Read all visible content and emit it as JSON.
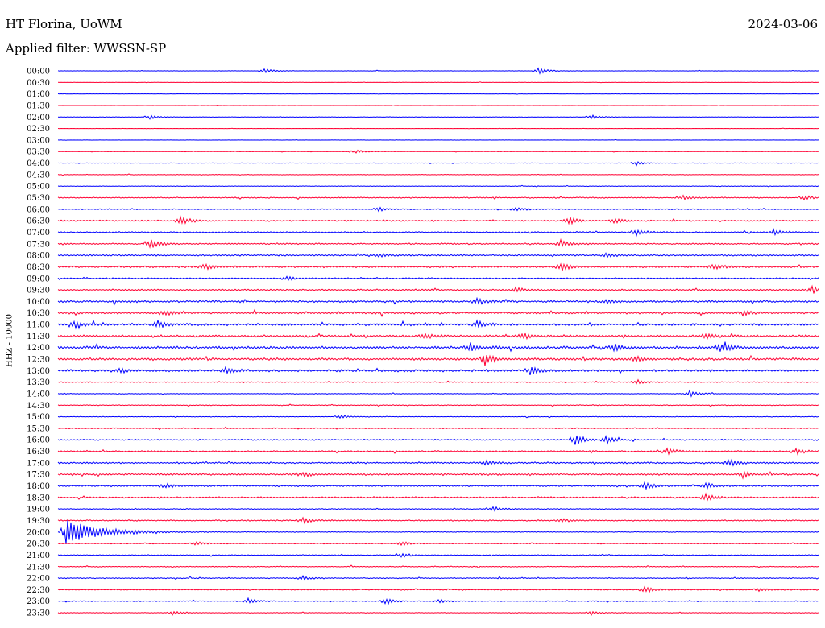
{
  "header": {
    "station": "HT Florina, UoWM",
    "date": "2024-03-06",
    "filter": "Applied filter: WWSSN-SP"
  },
  "ylabel": "HHZ - 10000",
  "colors": {
    "even_trace": "#0000ff",
    "odd_trace": "#ff0033",
    "text": "#000000",
    "background": "#ffffff"
  },
  "chart_data": {
    "type": "line",
    "title": "HT Florina, UoWM",
    "subtitle": "Applied filter: WWSSN-SP",
    "ylabel": "HHZ - 10000",
    "rows": [
      {
        "label": "00:00",
        "noise": 0.3,
        "bursts": [
          [
            0.27,
            4
          ],
          [
            0.63,
            5
          ]
        ]
      },
      {
        "label": "00:30",
        "noise": 0.2,
        "bursts": []
      },
      {
        "label": "01:00",
        "noise": 0.2,
        "bursts": []
      },
      {
        "label": "01:30",
        "noise": 0.2,
        "bursts": []
      },
      {
        "label": "02:00",
        "noise": 0.3,
        "bursts": [
          [
            0.12,
            3
          ],
          [
            0.7,
            3
          ]
        ]
      },
      {
        "label": "02:30",
        "noise": 0.2,
        "bursts": []
      },
      {
        "label": "03:00",
        "noise": 0.2,
        "bursts": []
      },
      {
        "label": "03:30",
        "noise": 0.3,
        "bursts": [
          [
            0.39,
            3
          ]
        ]
      },
      {
        "label": "04:00",
        "noise": 0.3,
        "bursts": [
          [
            0.76,
            3
          ]
        ]
      },
      {
        "label": "04:30",
        "noise": 0.4,
        "bursts": []
      },
      {
        "label": "05:00",
        "noise": 0.4,
        "bursts": []
      },
      {
        "label": "05:30",
        "noise": 0.8,
        "bursts": [
          [
            0.82,
            3
          ],
          [
            0.98,
            4
          ]
        ]
      },
      {
        "label": "06:00",
        "noise": 0.7,
        "bursts": [
          [
            0.42,
            3
          ],
          [
            0.6,
            3
          ]
        ]
      },
      {
        "label": "06:30",
        "noise": 1.0,
        "bursts": [
          [
            0.16,
            6
          ],
          [
            0.67,
            6
          ],
          [
            0.73,
            4
          ]
        ]
      },
      {
        "label": "07:00",
        "noise": 1.0,
        "bursts": [
          [
            0.76,
            4
          ],
          [
            0.94,
            4
          ]
        ]
      },
      {
        "label": "07:30",
        "noise": 1.0,
        "bursts": [
          [
            0.12,
            7
          ],
          [
            0.66,
            5
          ]
        ]
      },
      {
        "label": "08:00",
        "noise": 1.1,
        "bursts": [
          [
            0.42,
            3
          ],
          [
            0.72,
            3
          ]
        ]
      },
      {
        "label": "08:30",
        "noise": 1.3,
        "bursts": [
          [
            0.19,
            4
          ],
          [
            0.66,
            6
          ],
          [
            0.86,
            4
          ]
        ]
      },
      {
        "label": "09:00",
        "noise": 1.0,
        "bursts": [
          [
            0.3,
            3
          ]
        ]
      },
      {
        "label": "09:30",
        "noise": 1.1,
        "bursts": [
          [
            0.6,
            4
          ],
          [
            0.99,
            5
          ]
        ]
      },
      {
        "label": "10:00",
        "noise": 1.4,
        "bursts": [
          [
            0.55,
            4
          ],
          [
            0.72,
            3
          ]
        ]
      },
      {
        "label": "10:30",
        "noise": 1.4,
        "bursts": [
          [
            0.14,
            4
          ],
          [
            0.9,
            3
          ]
        ]
      },
      {
        "label": "11:00",
        "noise": 1.6,
        "bursts": [
          [
            0.02,
            5
          ],
          [
            0.13,
            5
          ],
          [
            0.55,
            5
          ]
        ]
      },
      {
        "label": "11:30",
        "noise": 1.5,
        "bursts": [
          [
            0.48,
            4
          ],
          [
            0.61,
            4
          ],
          [
            0.85,
            4
          ]
        ]
      },
      {
        "label": "12:00",
        "noise": 1.9,
        "bursts": [
          [
            0.54,
            5
          ],
          [
            0.73,
            5
          ],
          [
            0.87,
            7
          ]
        ]
      },
      {
        "label": "12:30",
        "noise": 1.7,
        "bursts": [
          [
            0.56,
            9
          ],
          [
            0.76,
            4
          ]
        ]
      },
      {
        "label": "13:00",
        "noise": 1.6,
        "bursts": [
          [
            0.08,
            4
          ],
          [
            0.22,
            4
          ],
          [
            0.62,
            6
          ]
        ]
      },
      {
        "label": "13:30",
        "noise": 0.7,
        "bursts": [
          [
            0.76,
            3
          ]
        ]
      },
      {
        "label": "14:00",
        "noise": 0.5,
        "bursts": [
          [
            0.83,
            4
          ]
        ]
      },
      {
        "label": "14:30",
        "noise": 0.6,
        "bursts": []
      },
      {
        "label": "15:00",
        "noise": 0.5,
        "bursts": [
          [
            0.37,
            3
          ]
        ]
      },
      {
        "label": "15:30",
        "noise": 0.7,
        "bursts": []
      },
      {
        "label": "16:00",
        "noise": 0.9,
        "bursts": [
          [
            0.68,
            8
          ],
          [
            0.72,
            5
          ]
        ]
      },
      {
        "label": "16:30",
        "noise": 1.0,
        "bursts": [
          [
            0.8,
            4
          ],
          [
            0.97,
            4
          ]
        ]
      },
      {
        "label": "17:00",
        "noise": 1.2,
        "bursts": [
          [
            0.56,
            4
          ],
          [
            0.88,
            5
          ]
        ]
      },
      {
        "label": "17:30",
        "noise": 1.3,
        "bursts": [
          [
            0.32,
            4
          ],
          [
            0.9,
            4
          ]
        ]
      },
      {
        "label": "18:00",
        "noise": 1.1,
        "bursts": [
          [
            0.14,
            4
          ],
          [
            0.77,
            6
          ],
          [
            0.85,
            5
          ]
        ]
      },
      {
        "label": "18:30",
        "noise": 1.1,
        "bursts": [
          [
            0.85,
            6
          ]
        ]
      },
      {
        "label": "19:00",
        "noise": 0.6,
        "bursts": [
          [
            0.57,
            4
          ]
        ]
      },
      {
        "label": "19:30",
        "noise": 0.9,
        "bursts": [
          [
            0.32,
            4
          ],
          [
            0.66,
            3
          ]
        ]
      },
      {
        "label": "20:00",
        "noise": 0.6,
        "bursts": [
          [
            0.01,
            16
          ]
        ]
      },
      {
        "label": "20:30",
        "noise": 0.6,
        "bursts": [
          [
            0.18,
            3
          ],
          [
            0.45,
            4
          ]
        ]
      },
      {
        "label": "21:00",
        "noise": 0.6,
        "bursts": [
          [
            0.45,
            4
          ]
        ]
      },
      {
        "label": "21:30",
        "noise": 0.6,
        "bursts": []
      },
      {
        "label": "22:00",
        "noise": 0.7,
        "bursts": [
          [
            0.32,
            3
          ]
        ]
      },
      {
        "label": "22:30",
        "noise": 0.7,
        "bursts": [
          [
            0.77,
            5
          ],
          [
            0.92,
            3
          ]
        ]
      },
      {
        "label": "23:00",
        "noise": 0.6,
        "bursts": [
          [
            0.25,
            4
          ],
          [
            0.43,
            5
          ],
          [
            0.5,
            3
          ]
        ]
      },
      {
        "label": "23:30",
        "noise": 0.5,
        "bursts": [
          [
            0.15,
            3
          ],
          [
            0.7,
            3
          ]
        ]
      }
    ]
  }
}
